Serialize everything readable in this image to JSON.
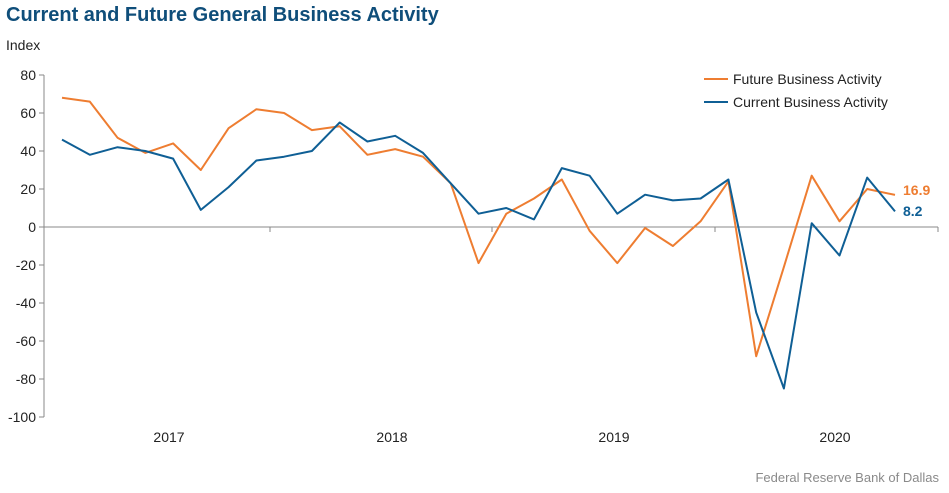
{
  "chart_data": {
    "type": "line",
    "title": "Current and Future General Business Activity",
    "ylabel": "Index",
    "ylim": [
      -100,
      80
    ],
    "yticks": [
      80,
      60,
      40,
      20,
      0,
      -20,
      -40,
      -60,
      -80,
      -100
    ],
    "year_labels": [
      "2017",
      "2018",
      "2019",
      "2020"
    ],
    "legend_position": "top-right",
    "series": [
      {
        "name": "Future Business Activity",
        "color": "#ee7d31",
        "end_label": "16.9",
        "values": [
          68,
          66,
          47,
          39,
          44,
          30,
          52,
          62,
          60,
          51,
          53,
          38,
          41,
          37,
          23,
          -19,
          7,
          15,
          25,
          -2,
          -19,
          -0.5,
          -10,
          3,
          24,
          -68,
          -21,
          27,
          3,
          20,
          16.9
        ]
      },
      {
        "name": "Current Business Activity",
        "color": "#0f5f95",
        "end_label": "8.2",
        "values": [
          46,
          38,
          42,
          40,
          36,
          9,
          21,
          35,
          37,
          40,
          55,
          45,
          48,
          39,
          23,
          7,
          10,
          4,
          31,
          27,
          7,
          17,
          14,
          15,
          25,
          -45,
          -85,
          2,
          -15,
          26,
          8.2
        ]
      }
    ]
  },
  "source": "Federal Reserve Bank of Dallas"
}
